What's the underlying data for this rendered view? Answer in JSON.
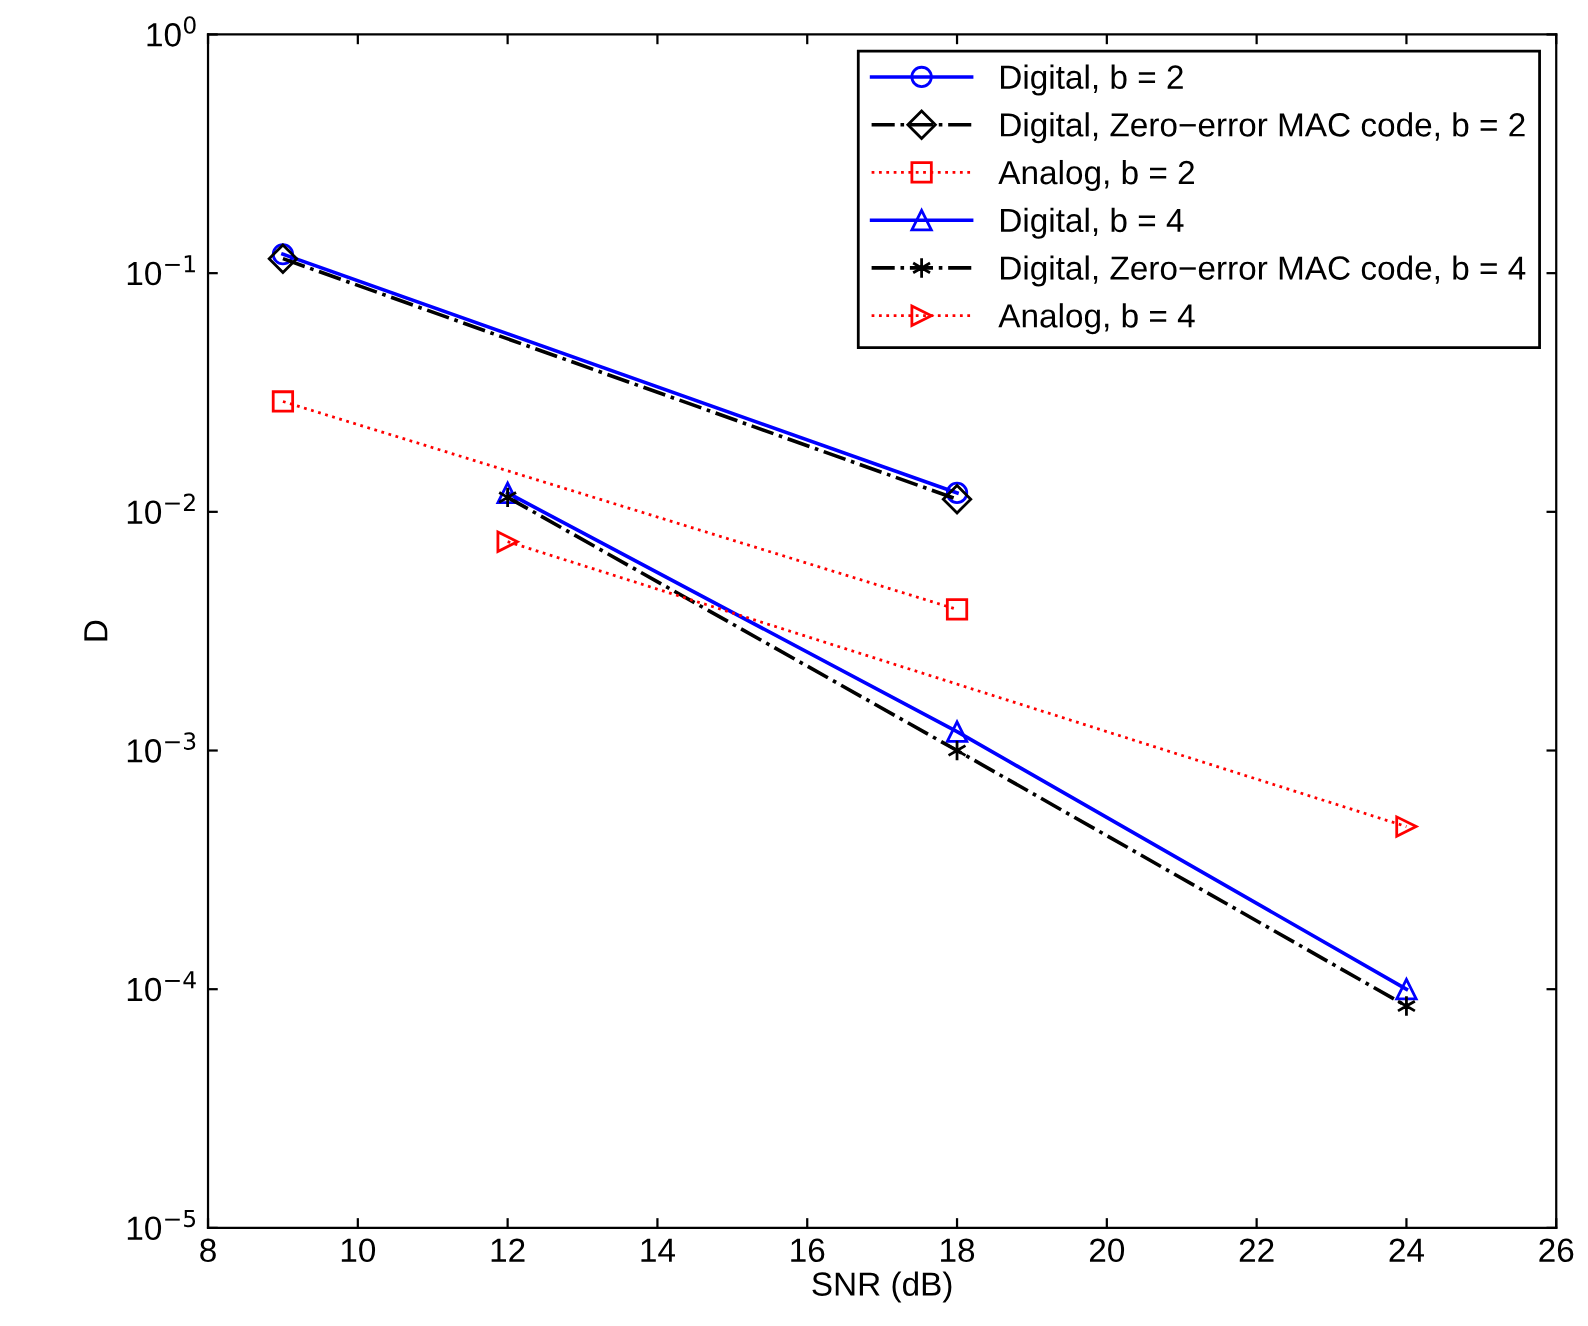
{
  "chart_data": {
    "type": "line",
    "xlabel": "SNR (dB)",
    "ylabel": "D",
    "log": "y",
    "grid": false,
    "legend": "top right",
    "xlim": [
      8,
      26
    ],
    "xticks": [
      8,
      10,
      12,
      14,
      16,
      18,
      20,
      22,
      24,
      26
    ],
    "ylim": [
      1e-05,
      1
    ],
    "yticks": [
      {
        "value": 1e-05,
        "label": "10$^{−5}$"
      },
      {
        "value": 0.0001,
        "label": "10$^{−4}$"
      },
      {
        "value": 0.001,
        "label": "10$^{−3}$"
      },
      {
        "value": 0.01,
        "label": "10$^{−2}$"
      },
      {
        "value": 0.1,
        "label": "10$^{−1}$"
      },
      {
        "value": 1,
        "label": "10$^{0}$"
      }
    ],
    "series": [
      {
        "name": "Digital, b = 2",
        "color": "#0000ff",
        "marker": "circle",
        "line_style": "solid",
        "x": [
          9,
          18
        ],
        "values": [
          0.12,
          0.012
        ]
      },
      {
        "name": "Digital, Zero−error MAC code, b = 2",
        "color": "#000000",
        "marker": "diamond",
        "line_style": "dashdot",
        "x": [
          9,
          18
        ],
        "values": [
          0.115,
          0.0113
        ]
      },
      {
        "name": "Analog, b = 2",
        "color": "#ff0000",
        "marker": "square",
        "line_style": "dotted",
        "x": [
          9,
          18
        ],
        "values": [
          0.029,
          0.0039
        ]
      },
      {
        "name": "Digital, b = 4",
        "color": "#0000ff",
        "marker": "triangle",
        "line_style": "solid",
        "x": [
          12,
          18,
          24
        ],
        "values": [
          0.012,
          0.0012,
          0.0001
        ]
      },
      {
        "name": "Digital, Zero−error MAC code, b = 4",
        "color": "#000000",
        "marker": "cross",
        "line_style": "dashdot",
        "x": [
          12,
          18,
          24
        ],
        "values": [
          0.0115,
          0.001,
          8.5e-05
        ]
      },
      {
        "name": "Analog, b = 4",
        "color": "#ff0000",
        "marker": "triangle_right",
        "line_style": "dotted",
        "x": [
          12,
          24
        ],
        "values": [
          0.0075,
          0.00048
        ]
      }
    ]
  }
}
